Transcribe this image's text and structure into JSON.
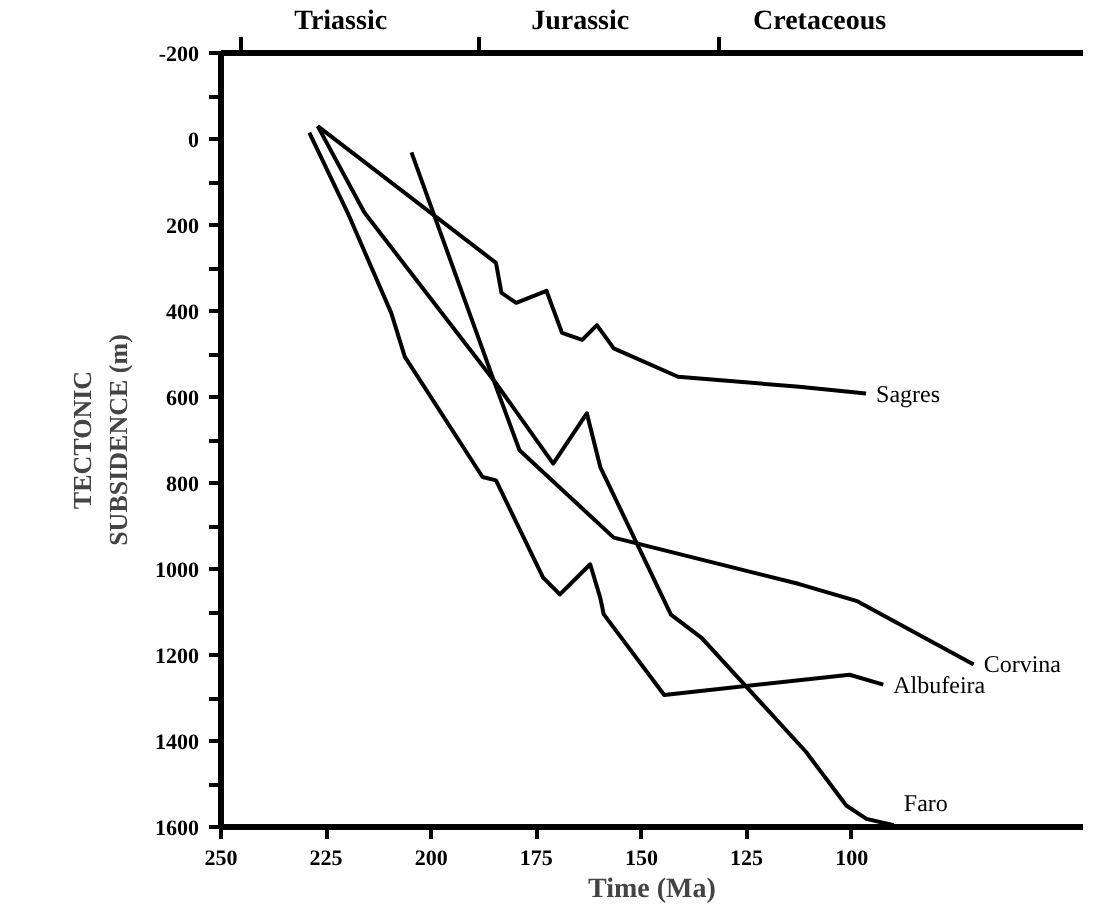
{
  "chart_data": {
    "type": "line",
    "xlabel": "Time (Ma)",
    "ylabel": "TECTONIC\nSUBSIDENCE (m)",
    "xlim": [
      250,
      45
    ],
    "xticks": [
      250,
      225,
      200,
      175,
      150,
      125,
      100
    ],
    "ylim": [
      1600,
      -200
    ],
    "yticks": [
      -200,
      {
        "value": -100,
        "label": null
      },
      0,
      {
        "value": 100,
        "label": null
      },
      200,
      {
        "value": 300,
        "label": null
      },
      400,
      {
        "value": 500,
        "label": null
      },
      600,
      {
        "value": 700,
        "label": null
      },
      800,
      {
        "value": 900,
        "label": null
      },
      1000,
      {
        "value": 1100,
        "label": null
      },
      1200,
      {
        "value": 1300,
        "label": null
      },
      1400,
      {
        "value": 1500,
        "label": null
      },
      1600
    ],
    "annotations": [
      "Triassic",
      "Jurassic",
      "Cretaceous"
    ],
    "grid": false,
    "legend": false,
    "marker": "none",
    "line_style": "solid",
    "series": [
      {
        "name": "Sagres",
        "color": "#000000",
        "x": [
          227,
          184.6,
          183.3,
          179.8,
          172.6,
          168.9,
          164.1,
          160.6,
          156.6,
          141.3,
          112.5,
          96.6
        ],
        "values": [
          -30,
          288,
          358,
          381,
          353,
          451,
          467,
          433,
          487,
          553,
          576,
          592
        ]
      },
      {
        "name": "Albufeira",
        "color": "#000000",
        "x": [
          229,
          219.9,
          209.5,
          206.3,
          187.8,
          184.6,
          173.4,
          169.4,
          162.2,
          159.8,
          159,
          144.6,
          100.5,
          92.5
        ],
        "values": [
          -15,
          171,
          405,
          506,
          786,
          794,
          1020,
          1059,
          989,
          1067,
          1105,
          1293,
          1246,
          1269
        ]
      },
      {
        "name": "Faro",
        "color": "#000000",
        "x": [
          227,
          215.9,
          184.6,
          171,
          163,
          159.8,
          143,
          135.7,
          110.9,
          101.3,
          96.5,
          90
        ],
        "values": [
          -30,
          171,
          568,
          755,
          638,
          763,
          1106,
          1160,
          1425,
          1550,
          1581,
          1596
        ]
      },
      {
        "name": "Corvina",
        "color": "#000000",
        "x": [
          204.7,
          184.6,
          179,
          156.6,
          112.5,
          98.9,
          71
        ],
        "values": [
          31,
          576,
          724,
          927,
          1035,
          1074,
          1222
        ]
      }
    ]
  }
}
